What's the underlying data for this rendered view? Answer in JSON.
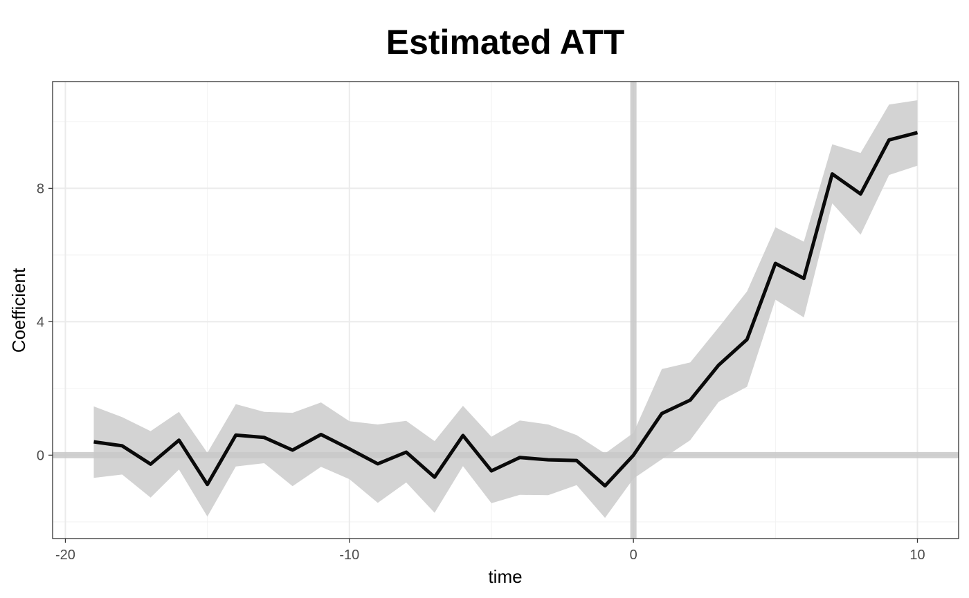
{
  "chart_data": {
    "type": "line",
    "title": "Estimated ATT",
    "xlabel": "time",
    "ylabel": "Coefficient",
    "xlim": [
      -20.45,
      11.45
    ],
    "ylim": [
      -2.5,
      11.2
    ],
    "x_ticks": [
      -20,
      -10,
      0,
      10
    ],
    "x_tick_labels": [
      "-20",
      "-10",
      "0",
      "10"
    ],
    "y_ticks": [
      0,
      4,
      8
    ],
    "y_tick_labels": [
      "0",
      "4",
      "8"
    ],
    "x_minor_ticks": [
      -15,
      -5,
      5
    ],
    "y_minor_ticks": [
      -2,
      2,
      6,
      10
    ],
    "grid": true,
    "reference_lines": {
      "x": 0,
      "y": 0
    },
    "band_color": "#d3d3d3",
    "reference_line_color": "#c8c8c8",
    "line_color": "#0a0a0a",
    "series": [
      {
        "x": [
          -19,
          -18,
          -17,
          -16,
          -15,
          -14,
          -13,
          -12,
          -11,
          -10,
          -9,
          -8,
          -7,
          -6,
          -5,
          -4,
          -3,
          -2,
          -1,
          0,
          1,
          2,
          3,
          4,
          5,
          6,
          7,
          8,
          9,
          10
        ],
        "values": [
          0.4,
          0.28,
          -0.27,
          0.45,
          -0.88,
          0.6,
          0.53,
          0.15,
          0.62,
          0.19,
          -0.26,
          0.09,
          -0.66,
          0.59,
          -0.47,
          -0.07,
          -0.14,
          -0.16,
          -0.92,
          0.0,
          1.25,
          1.65,
          2.7,
          3.47,
          5.75,
          5.3,
          8.43,
          7.83,
          9.45,
          9.67
        ],
        "lower": [
          -0.68,
          -0.58,
          -1.27,
          -0.43,
          -1.84,
          -0.34,
          -0.24,
          -0.93,
          -0.35,
          -0.72,
          -1.43,
          -0.82,
          -1.73,
          -0.33,
          -1.44,
          -1.19,
          -1.2,
          -0.9,
          -1.88,
          -0.7,
          -0.12,
          0.45,
          1.6,
          2.05,
          4.66,
          4.13,
          7.55,
          6.61,
          8.4,
          8.68
        ],
        "upper": [
          1.46,
          1.14,
          0.72,
          1.3,
          0.07,
          1.53,
          1.3,
          1.27,
          1.58,
          1.02,
          0.92,
          1.03,
          0.42,
          1.48,
          0.55,
          1.04,
          0.92,
          0.6,
          0.05,
          0.67,
          2.58,
          2.78,
          3.83,
          4.91,
          6.83,
          6.4,
          9.32,
          9.06,
          10.51,
          10.64
        ]
      }
    ]
  }
}
